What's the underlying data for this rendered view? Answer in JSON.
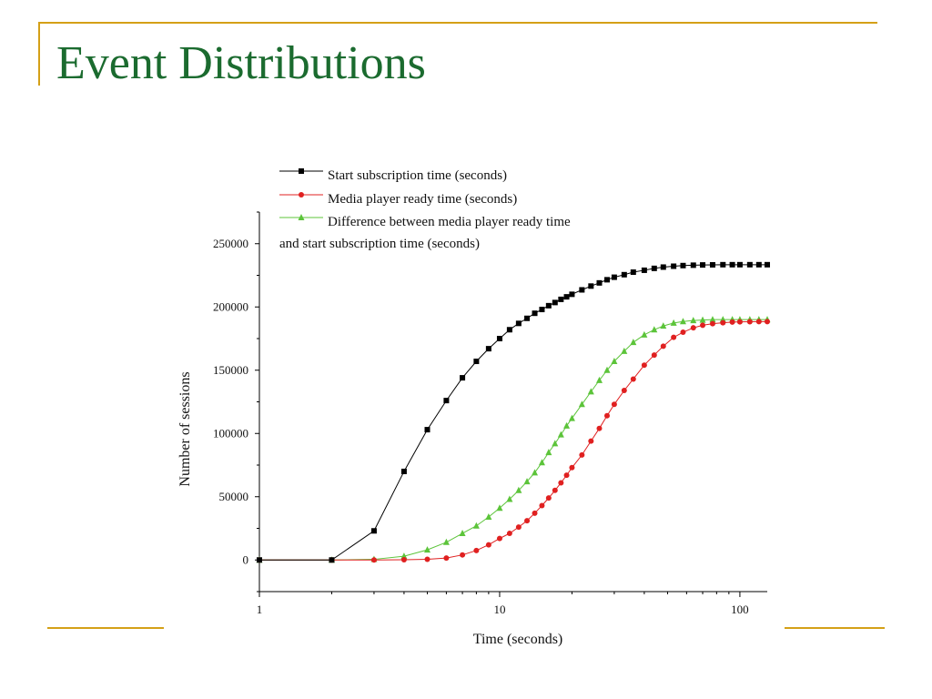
{
  "slide": {
    "title": "Event Distributions"
  },
  "colors": {
    "frame_accent": "#d4a017",
    "title_text": "#1b6b2f"
  },
  "chart_data": {
    "type": "line",
    "x_scale": "log",
    "xlabel": "Time (seconds)",
    "ylabel": "Number of sessions",
    "xlim": [
      1,
      130
    ],
    "ylim": [
      -25000,
      275000
    ],
    "x_ticks": [
      1,
      10,
      100
    ],
    "y_ticks": [
      0,
      50000,
      100000,
      150000,
      200000,
      250000
    ],
    "legend_position": "top-left",
    "series": [
      {
        "name": "Start subscription time (seconds)",
        "color": "#000000",
        "marker": "square",
        "x": [
          1,
          2,
          3,
          4,
          5,
          6,
          7,
          8,
          9,
          10,
          11,
          12,
          13,
          14,
          15,
          16,
          17,
          18,
          19,
          20,
          22,
          24,
          26,
          28,
          30,
          33,
          36,
          40,
          44,
          48,
          53,
          58,
          64,
          70,
          77,
          85,
          93,
          100,
          110,
          120,
          130
        ],
        "y": [
          0,
          0,
          23000,
          70000,
          103000,
          126000,
          144000,
          157000,
          167000,
          175000,
          182000,
          187000,
          191000,
          195000,
          198000,
          201000,
          203500,
          206000,
          208000,
          210000,
          213500,
          216500,
          219000,
          221500,
          223500,
          225500,
          227500,
          229000,
          230500,
          231500,
          232200,
          232700,
          233000,
          233200,
          233300,
          233400,
          233400,
          233400,
          233400,
          233400,
          233400
        ]
      },
      {
        "name": "Media player ready time (seconds)",
        "color": "#e02020",
        "marker": "circle",
        "x": [
          1,
          2,
          3,
          4,
          5,
          6,
          7,
          8,
          9,
          10,
          11,
          12,
          13,
          14,
          15,
          16,
          17,
          18,
          19,
          20,
          22,
          24,
          26,
          28,
          30,
          33,
          36,
          40,
          44,
          48,
          53,
          58,
          64,
          70,
          77,
          85,
          93,
          100,
          110,
          120,
          130
        ],
        "y": [
          0,
          0,
          0,
          200,
          500,
          1500,
          4000,
          7500,
          12000,
          17000,
          21000,
          26000,
          31000,
          37000,
          43000,
          49000,
          55000,
          61000,
          67000,
          73000,
          83000,
          94000,
          104000,
          114000,
          123000,
          134000,
          143000,
          154000,
          162000,
          169000,
          176000,
          180000,
          183500,
          185500,
          186800,
          187500,
          188000,
          188200,
          188300,
          188400,
          188400
        ]
      },
      {
        "name": "Difference between media player ready time and start subscription time (seconds)",
        "color": "#5cc43a",
        "marker": "triangle",
        "x": [
          1,
          2,
          3,
          4,
          5,
          6,
          7,
          8,
          9,
          10,
          11,
          12,
          13,
          14,
          15,
          16,
          17,
          18,
          19,
          20,
          22,
          24,
          26,
          28,
          30,
          33,
          36,
          40,
          44,
          48,
          53,
          58,
          64,
          70,
          77,
          85,
          93,
          100,
          110,
          120,
          130
        ],
        "y": [
          0,
          0,
          500,
          3000,
          8000,
          14000,
          21000,
          27000,
          34000,
          41000,
          48000,
          55000,
          62000,
          69000,
          77000,
          85000,
          92000,
          99000,
          106000,
          112000,
          123000,
          133000,
          142000,
          150000,
          157000,
          165000,
          172000,
          178000,
          182000,
          185000,
          187300,
          188500,
          189300,
          189700,
          190000,
          190000,
          190000,
          190000,
          190000,
          190000,
          190000
        ]
      }
    ]
  }
}
